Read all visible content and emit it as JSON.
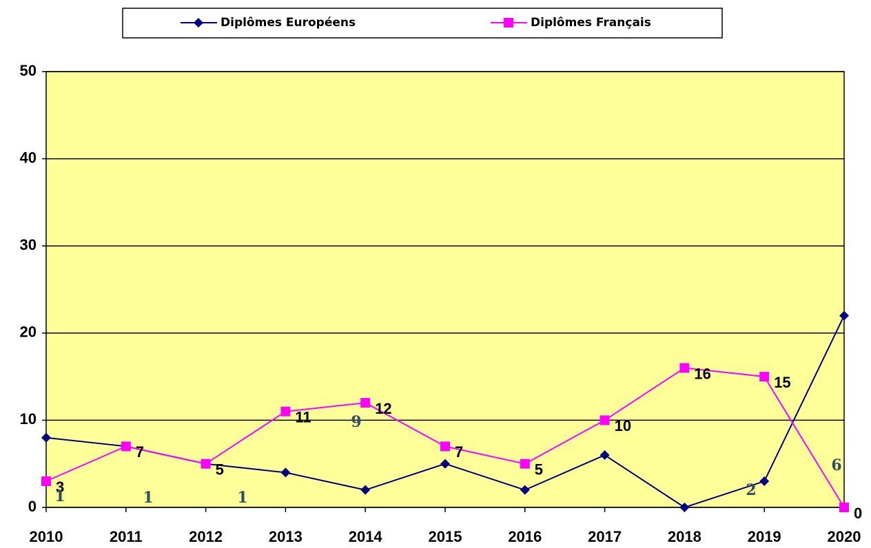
{
  "chart_data": {
    "type": "line",
    "categories": [
      "2010",
      "2011",
      "2012",
      "2013",
      "2014",
      "2015",
      "2016",
      "2017",
      "2018",
      "2019",
      "2020"
    ],
    "series": [
      {
        "name": "Diplômes Européens",
        "color": "#000080",
        "marker": "diamond",
        "data_labels": false,
        "values": [
          8,
          7,
          5,
          4,
          2,
          5,
          2,
          6,
          0,
          3,
          22
        ]
      },
      {
        "name": "Diplômes Français",
        "color": "#ff00ff",
        "marker": "square",
        "data_labels": true,
        "values": [
          3,
          7,
          5,
          11,
          12,
          7,
          5,
          10,
          16,
          15,
          0
        ]
      }
    ],
    "annotations": [
      "1",
      "1",
      "1",
      "9",
      "2",
      "6"
    ],
    "ylim": [
      0,
      50
    ],
    "yticks": [
      0,
      10,
      20,
      30,
      40,
      50
    ],
    "grid": true,
    "plot_background": "#ffff99",
    "legend": "top"
  }
}
